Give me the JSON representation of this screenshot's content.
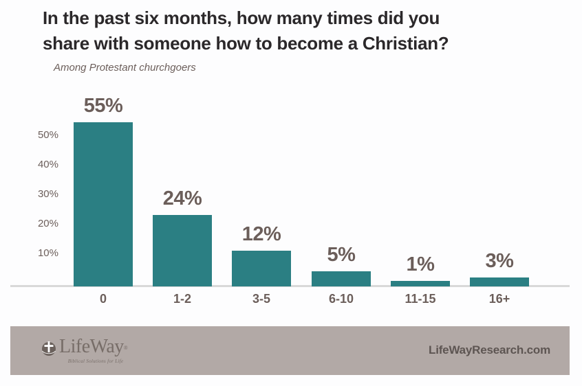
{
  "header": {
    "title_lines": [
      "In the past six months, how many times did you",
      "share with someone how to become a Christian?"
    ],
    "subtitle": "Among Protestant churchgoers"
  },
  "chart_data": {
    "type": "bar",
    "title": "In the past six months, how many times did you share with someone how to become a Christian?",
    "subtitle": "Among Protestant churchgoers",
    "categories": [
      "0",
      "1-2",
      "3-5",
      "6-10",
      "11-15",
      "16+"
    ],
    "values": [
      55,
      24,
      12,
      5,
      1,
      3
    ],
    "value_labels": [
      "55%",
      "24%",
      "12%",
      "5%",
      "1%",
      "3%"
    ],
    "xlabel": "",
    "ylabel": "",
    "ylim": [
      0,
      60
    ],
    "y_tick_values": [
      50,
      40,
      30,
      20,
      10
    ],
    "y_tick_labels": [
      "50%",
      "40%",
      "30%",
      "20%",
      "10%"
    ],
    "grid": false,
    "legend": null,
    "bar_color": "#2b7f83"
  },
  "footer": {
    "logo": {
      "icon": "lifeway-globe-cross-icon",
      "brand": "LifeWay",
      "registered": "®",
      "tagline": "Biblical Solutions for Life"
    },
    "site": "LifeWayResearch.com"
  },
  "colors": {
    "background": "#fdfdfe",
    "bar_teal": "#2b7f83",
    "title_text": "#2b282a",
    "label_brown": "#6b5e5a",
    "axis_gray": "#d9d9d9",
    "footer_band": "#b2a9a6",
    "footer_text": "#5d5552",
    "logo_color": "#776d68"
  }
}
